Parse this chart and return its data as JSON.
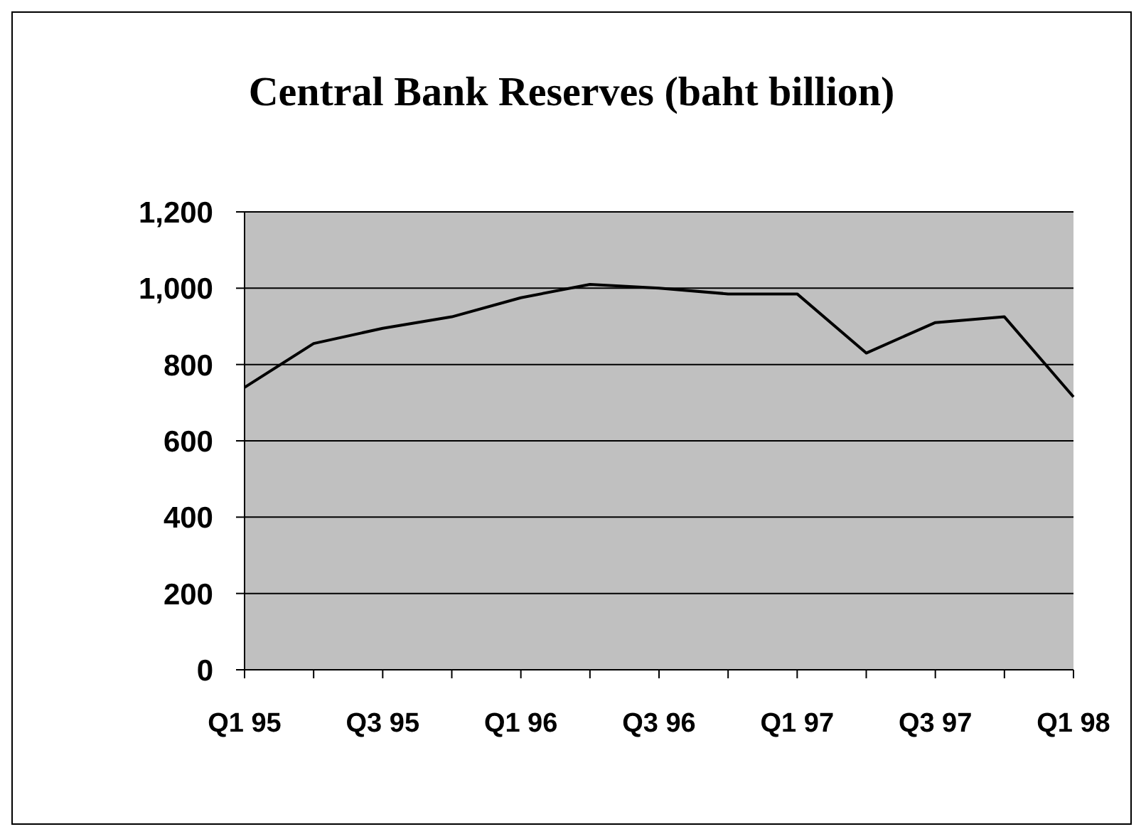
{
  "chart_data": {
    "type": "line",
    "title": "Central Bank Reserves (baht billion)",
    "categories": [
      "Q1 95",
      null,
      "Q3 95",
      null,
      "Q1 96",
      null,
      "Q3 96",
      null,
      "Q1 97",
      null,
      "Q3 97",
      null,
      "Q1 98"
    ],
    "series": [
      {
        "color": "#000000",
        "values": [
          740,
          855,
          895,
          925,
          975,
          1010,
          1000,
          985,
          985,
          830,
          910,
          925,
          715
        ]
      }
    ],
    "ylim": [
      0,
      1200
    ],
    "yticks": [
      0,
      {
        "value": 200,
        "label": "200"
      },
      {
        "value": 400,
        "label": "400"
      },
      {
        "value": 600,
        "label": "600"
      },
      {
        "value": 800,
        "label": "800"
      },
      {
        "value": 1000,
        "label": "1,000"
      },
      {
        "value": 1200,
        "label": "1,200"
      }
    ],
    "grid": "y",
    "legend": false,
    "marker": "none",
    "line_style": "solid"
  }
}
